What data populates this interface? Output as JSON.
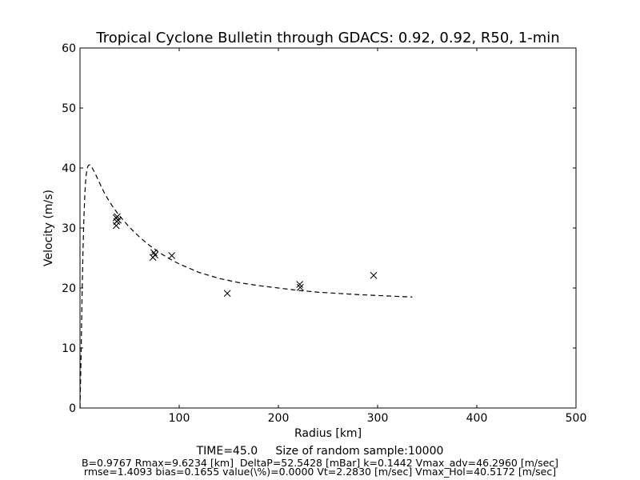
{
  "chart_data": {
    "type": "scatter",
    "title": "Tropical Cyclone Bulletin through GDACS: 0.92, 0.92, R50, 1-min",
    "xlabel": "Radius [km]",
    "ylabel": "Velocity (m/s)",
    "xlim": [
      0,
      500
    ],
    "ylim": [
      0,
      60
    ],
    "xticks": [
      100,
      200,
      300,
      400,
      500
    ],
    "yticks": [
      0,
      10,
      20,
      30,
      40,
      50,
      60
    ],
    "grid": false,
    "series": [
      {
        "marker": "x",
        "color": "#000000",
        "points": [
          [
            36.5,
            31.7
          ],
          [
            37,
            31.1
          ],
          [
            36.5,
            30.4
          ],
          [
            37.5,
            31.9
          ],
          [
            38.5,
            31.3
          ],
          [
            73.5,
            25.1
          ],
          [
            74.5,
            25.9
          ],
          [
            75.5,
            25.5
          ],
          [
            92.5,
            25.4
          ],
          [
            148.5,
            19.1
          ],
          [
            221.5,
            20.6
          ],
          [
            222,
            20.1
          ],
          [
            296,
            22.1
          ]
        ]
      },
      {
        "line_style": "dashed",
        "color": "#000000",
        "x": [
          0,
          1,
          2,
          3,
          4,
          5,
          6,
          7,
          8,
          9,
          10,
          12,
          15,
          20,
          25,
          30,
          35,
          40,
          50,
          60,
          70,
          80,
          90,
          100,
          120,
          140,
          160,
          180,
          200,
          220,
          240,
          260,
          280,
          300,
          320,
          335
        ],
        "y": [
          0,
          8,
          18,
          26,
          32,
          36,
          38.5,
          39.8,
          40.3,
          40.5,
          40.5,
          40.1,
          39.2,
          37.4,
          35.7,
          34.3,
          33.1,
          32,
          30.1,
          28.5,
          27.1,
          25.9,
          24.9,
          24,
          22.6,
          21.6,
          20.9,
          20.4,
          20,
          19.6,
          19.3,
          19.1,
          18.9,
          18.75,
          18.6,
          18.5
        ]
      }
    ]
  },
  "footer": {
    "main": "TIME=45.0     Size of random sample:10000",
    "line1": "B=0.9767 Rmax=9.6234 [km]  DeltaP=52.5428 [mBar] k=0.1442 Vmax_adv=46.2960 [m/sec]",
    "line2": "rmse=1.4093 bias=0.1655 value(\\%)=0.0000 Vt=2.2830 [m/sec] Vmax_Hol=40.5172 [m/sec]"
  }
}
